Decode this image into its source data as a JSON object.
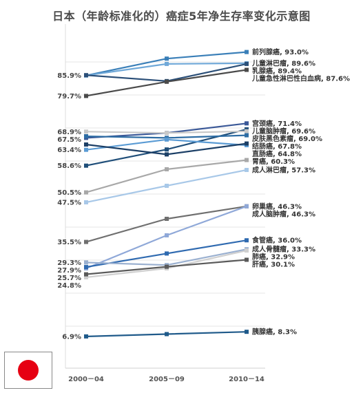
{
  "title": "日本（年龄标准化的）癌症5年净生存率变化示意图",
  "flag": {
    "sun_color": "#e60012"
  },
  "chart_data": {
    "type": "line",
    "x": [
      "2000－04",
      "2005－09",
      "2010－14"
    ],
    "ylim": [
      0,
      100
    ],
    "grid": "horizontal",
    "legend": "none (labels at line ends)",
    "series": [
      {
        "name": "前列腺癌",
        "values": [
          85.9,
          91.0,
          93.0
        ],
        "color": "#3a7fb8",
        "left_label": "85.9%",
        "right_label": "前列腺癌, 93.0%"
      },
      {
        "name": "儿童淋巴瘤",
        "values": [
          85.9,
          89.4,
          89.6
        ],
        "color": "#6fa8d8",
        "left_label": "",
        "right_label": "儿童淋巴瘤, 89.6%"
      },
      {
        "name": "乳腺癌",
        "values": [
          86.0,
          84.2,
          89.4
        ],
        "color": "#2b4f78",
        "left_label": "",
        "right_label": "乳腺癌, 89.4%"
      },
      {
        "name": "儿童急性淋巴性白血病",
        "values": [
          79.7,
          84.0,
          87.6
        ],
        "color": "#4a4a4a",
        "left_label": "79.7%",
        "right_label": "儿童急性淋巴性白血病, 87.6%"
      },
      {
        "name": "宫颈癌",
        "values": [
          67.0,
          68.5,
          71.4
        ],
        "color": "#3b5998",
        "left_label": "",
        "right_label": "宫颈癌, 71.4%"
      },
      {
        "name": "儿童脑肿瘤",
        "values": [
          58.6,
          63.5,
          69.6
        ],
        "color": "#1f4e79",
        "left_label": "58.6%",
        "right_label": "儿童脑肿瘤, 69.6%"
      },
      {
        "name": "皮肤黑色素瘤",
        "values": [
          68.9,
          68.5,
          69.0
        ],
        "color": "#c8c8c8",
        "left_label": "68.9%",
        "right_label": "皮肤黑色素瘤, 69.0%"
      },
      {
        "name": "结肠癌",
        "values": [
          67.5,
          67.0,
          67.8
        ],
        "color": "#2e6da4",
        "left_label": "67.5%",
        "right_label": "结肠癌, 67.8%"
      },
      {
        "name": "直肠癌",
        "values": [
          63.4,
          66.5,
          64.8
        ],
        "color": "#5a9bd4",
        "left_label": "63.4%",
        "right_label": "直肠癌, 64.8%"
      },
      {
        "name": "成人脑肿瘤",
        "values": [
          65.0,
          62.0,
          65.3
        ],
        "color": "#1c3f66",
        "left_label": "",
        "right_label": ""
      },
      {
        "name": "胃癌",
        "values": [
          50.5,
          57.5,
          60.3
        ],
        "color": "#a8a8a8",
        "left_label": "50.5%",
        "right_label": "胃癌, 60.3%"
      },
      {
        "name": "成人淋巴瘤",
        "values": [
          47.5,
          52.5,
          57.3
        ],
        "color": "#a8c8e8",
        "left_label": "47.5%",
        "right_label": "成人淋巴瘤, 57.3%"
      },
      {
        "name": "卵巢癌",
        "values": [
          35.5,
          42.5,
          46.3
        ],
        "color": "#6f6f6f",
        "left_label": "35.5%",
        "right_label": "卵巢癌, 46.3%"
      },
      {
        "name": "成人脑肿瘤",
        "values": [
          27.5,
          37.5,
          46.3
        ],
        "color": "#8fa8d8",
        "left_label": "",
        "right_label": "成人脑肿瘤, 46.3%"
      },
      {
        "name": "食管癌",
        "values": [
          27.9,
          32.0,
          36.0
        ],
        "color": "#2f6ab0",
        "left_label": "27.9%",
        "right_label": "食管癌, 36.0%"
      },
      {
        "name": "成人骨髓瘤",
        "values": [
          29.3,
          28.5,
          33.3
        ],
        "color": "#9ab0d0",
        "left_label": "29.3%",
        "right_label": "成人骨髓瘤, 33.3%"
      },
      {
        "name": "肺癌",
        "values": [
          24.8,
          27.5,
          32.9
        ],
        "color": "#d0d0d0",
        "left_label": "24.8%",
        "right_label": "肺癌, 32.9%"
      },
      {
        "name": "肝癌",
        "values": [
          25.7,
          28.0,
          30.1
        ],
        "color": "#5a5a5a",
        "left_label": "25.7%",
        "right_label": "肝癌, 30.1%"
      },
      {
        "name": "胰腺癌",
        "values": [
          6.9,
          7.6,
          8.3
        ],
        "color": "#1f5a8a",
        "left_label": "6.9%",
        "right_label": "胰腺癌, 8.3%"
      }
    ]
  }
}
